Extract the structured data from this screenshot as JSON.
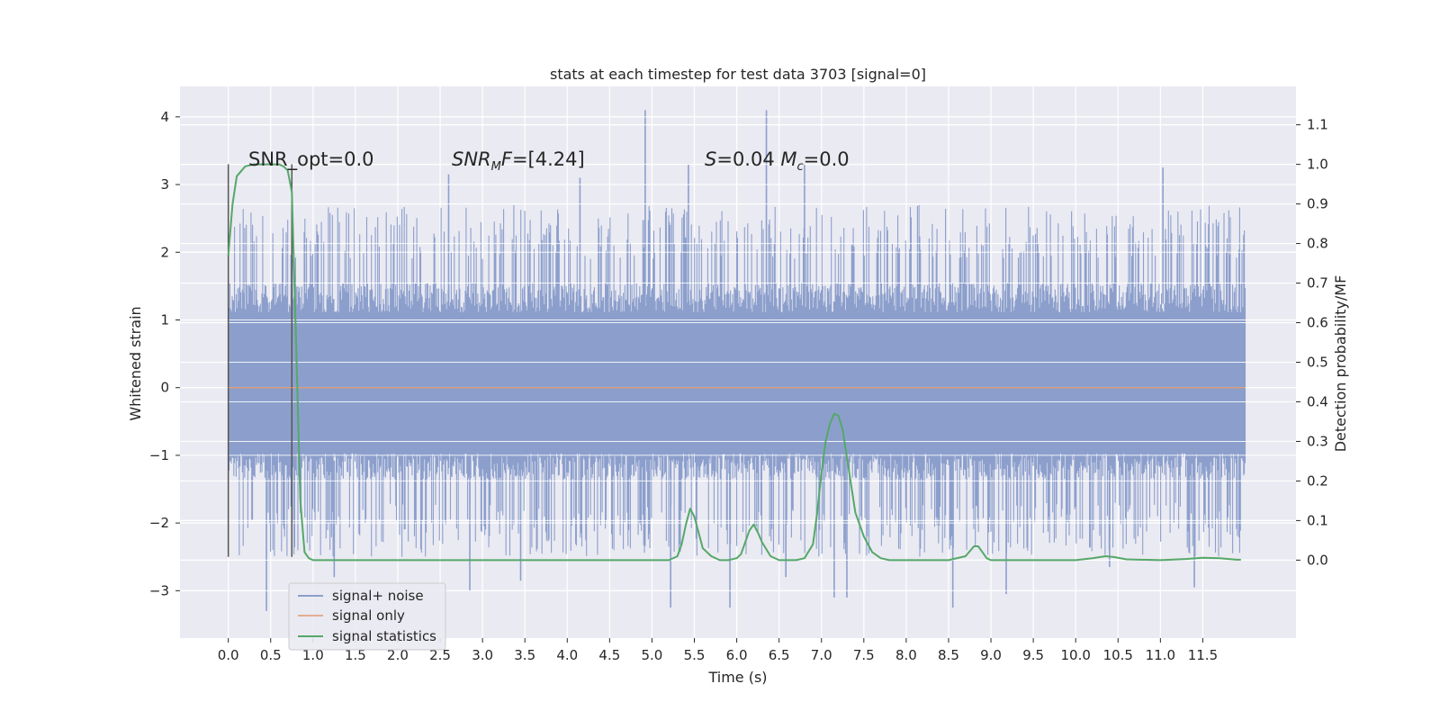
{
  "chart_data": {
    "type": "line",
    "title": "stats at each timestep for test data 3703 [signal=0]",
    "xlabel": "Time (s)",
    "ylabel": "Whitened strain",
    "y2label": "Detection probability/MF",
    "xlim": [
      -0.57,
      12.6
    ],
    "ylim": [
      -3.7,
      4.45
    ],
    "y2lim": [
      -0.197,
      1.197
    ],
    "x_ticks": [
      "0.0",
      "0.5",
      "1.0",
      "1.5",
      "2.0",
      "2.5",
      "3.0",
      "3.5",
      "4.0",
      "4.5",
      "5.0",
      "5.5",
      "6.0",
      "6.5",
      "7.0",
      "7.5",
      "8.0",
      "8.5",
      "9.0",
      "9.5",
      "10.0",
      "10.5",
      "11.0",
      "11.5"
    ],
    "y_ticks": [
      "−3",
      "−2",
      "−1",
      "0",
      "1",
      "2",
      "3",
      "4"
    ],
    "y_tick_values": [
      -3,
      -2,
      -1,
      0,
      1,
      2,
      3,
      4
    ],
    "y2_ticks": [
      "0.0",
      "0.1",
      "0.2",
      "0.3",
      "0.4",
      "0.5",
      "0.6",
      "0.7",
      "0.8",
      "0.9",
      "1.0",
      "1.1"
    ],
    "y2_tick_values": [
      0.0,
      0.1,
      0.2,
      0.3,
      0.4,
      0.5,
      0.6,
      0.7,
      0.8,
      0.9,
      1.0,
      1.1
    ],
    "grid": true,
    "legend_position": "lower-left",
    "annotations": [
      {
        "text": "SNR_opt=0.0",
        "x": 0.2,
        "y2": 1.0
      },
      {
        "text": "SNR_MF=[4.24]",
        "x": 2.6,
        "y2": 1.0
      },
      {
        "text": "S=0.04  M_c=0.0",
        "x": 5.6,
        "y2": 1.0
      }
    ],
    "vertical_markers": [
      {
        "x": 0.0,
        "y_range": [
          -2.5,
          3.3
        ]
      },
      {
        "x": 0.75,
        "y_range": [
          -2.5,
          3.3
        ]
      }
    ],
    "series": [
      {
        "name": "signal+ noise",
        "color": "#8c9fcc",
        "axis": "left",
        "noise_range": [
          0.0,
          12.0
        ],
        "dense_band": [
          -1.35,
          1.55
        ],
        "typical_peak_range": [
          1.9,
          2.7
        ],
        "spikes": [
          {
            "x": 0.45,
            "y": -3.3
          },
          {
            "x": 1.25,
            "y": -2.8
          },
          {
            "x": 2.6,
            "y": 3.15
          },
          {
            "x": 2.85,
            "y": -3.0
          },
          {
            "x": 3.45,
            "y": -2.85
          },
          {
            "x": 4.15,
            "y": 3.1
          },
          {
            "x": 4.92,
            "y": 4.1
          },
          {
            "x": 5.22,
            "y": -3.25
          },
          {
            "x": 5.43,
            "y": 3.3
          },
          {
            "x": 5.92,
            "y": -3.25
          },
          {
            "x": 6.35,
            "y": 4.1
          },
          {
            "x": 6.58,
            "y": -2.8
          },
          {
            "x": 6.8,
            "y": 3.3
          },
          {
            "x": 7.15,
            "y": -3.1
          },
          {
            "x": 7.3,
            "y": -3.1
          },
          {
            "x": 8.55,
            "y": -3.25
          },
          {
            "x": 9.18,
            "y": -3.05
          },
          {
            "x": 10.4,
            "y": -2.65
          },
          {
            "x": 11.03,
            "y": 3.25
          },
          {
            "x": 11.4,
            "y": -2.95
          }
        ]
      },
      {
        "name": "signal only",
        "color": "#dd8452",
        "axis": "left",
        "x": [
          0.0,
          12.0
        ],
        "y": [
          0.0,
          0.0
        ]
      },
      {
        "name": "signal statistics",
        "color": "#55a868",
        "axis": "right",
        "x": [
          0.0,
          0.05,
          0.1,
          0.2,
          0.3,
          0.4,
          0.5,
          0.6,
          0.65,
          0.7,
          0.75,
          0.8,
          0.85,
          0.9,
          0.95,
          1.0,
          1.5,
          2.0,
          2.5,
          3.0,
          3.5,
          4.0,
          4.5,
          5.0,
          5.2,
          5.3,
          5.35,
          5.4,
          5.45,
          5.5,
          5.55,
          5.6,
          5.7,
          5.8,
          5.9,
          6.0,
          6.05,
          6.1,
          6.15,
          6.2,
          6.25,
          6.3,
          6.4,
          6.5,
          6.6,
          6.7,
          6.8,
          6.9,
          6.95,
          7.0,
          7.05,
          7.1,
          7.15,
          7.2,
          7.25,
          7.3,
          7.35,
          7.4,
          7.5,
          7.6,
          7.7,
          7.8,
          8.0,
          8.5,
          8.7,
          8.8,
          8.85,
          8.9,
          8.95,
          9.0,
          9.5,
          10.0,
          10.2,
          10.35,
          10.45,
          10.6,
          11.0,
          11.3,
          11.5,
          11.7,
          11.9,
          11.95
        ],
        "y": [
          0.77,
          0.9,
          0.97,
          0.995,
          1.0,
          1.0,
          1.0,
          1.0,
          0.995,
          0.985,
          0.93,
          0.55,
          0.15,
          0.02,
          0.005,
          0.0,
          0.0,
          0.0,
          0.0,
          0.0,
          0.0,
          0.0,
          0.0,
          0.0,
          0.0,
          0.01,
          0.04,
          0.09,
          0.13,
          0.11,
          0.07,
          0.03,
          0.01,
          0.0,
          0.0,
          0.005,
          0.015,
          0.045,
          0.075,
          0.09,
          0.07,
          0.045,
          0.01,
          0.0,
          0.0,
          0.0,
          0.005,
          0.04,
          0.12,
          0.22,
          0.3,
          0.345,
          0.37,
          0.365,
          0.33,
          0.26,
          0.19,
          0.12,
          0.06,
          0.02,
          0.005,
          0.0,
          0.0,
          0.0,
          0.01,
          0.035,
          0.035,
          0.02,
          0.005,
          0.0,
          0.0,
          0.0,
          0.005,
          0.01,
          0.008,
          0.002,
          0.0,
          0.003,
          0.006,
          0.005,
          0.001,
          0.001
        ]
      }
    ]
  }
}
